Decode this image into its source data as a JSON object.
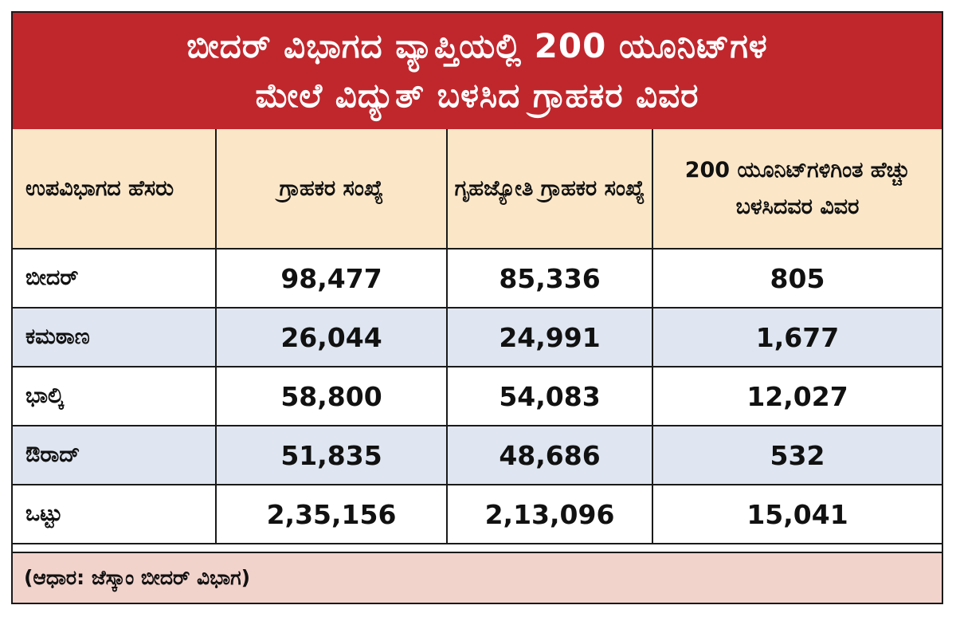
{
  "title": {
    "line1": "ಬೀದರ್ ವಿಭಾಗದ ವ್ಯಾಪ್ತಿಯಲ್ಲಿ 200 ಯೂನಿಟ್‌ಗಳ",
    "line2": "ಮೇಲೆ ವಿದ್ಯುತ್ ಬಳಸಿದ ಗ್ರಾಹಕರ ವಿವರ"
  },
  "headers": {
    "col1": "ಉಪವಿಭಾಗದ ಹೆಸರು",
    "col2": "ಗ್ರಾಹಕರ ಸಂಖ್ಯೆ",
    "col3": "ಗೃಹಜ್ಯೋತಿ ಗ್ರಾಹಕರ ಸಂಖ್ಯೆ",
    "col4": "200 ಯೂನಿಟ್‌ಗಳಿಗಿಂತ ಹೆಚ್ಚು ಬಳಸಿದವರ ವಿವರ"
  },
  "rows": [
    {
      "name": "ಬೀದರ್",
      "consumers": "98,477",
      "gruhajyothi": "85,336",
      "over200": "805"
    },
    {
      "name": "ಕಮಠಾಣ",
      "consumers": "26,044",
      "gruhajyothi": "24,991",
      "over200": "1,677"
    },
    {
      "name": "ಭಾಲ್ಕಿ",
      "consumers": "58,800",
      "gruhajyothi": "54,083",
      "over200": "12,027"
    },
    {
      "name": "ಔರಾದ್",
      "consumers": "51,835",
      "gruhajyothi": "48,686",
      "over200": "532"
    },
    {
      "name": "ಒಟ್ಟು",
      "consumers": "2,35,156",
      "gruhajyothi": "2,13,096",
      "over200": "15,041"
    }
  ],
  "source": "(ಆಧಾರ: ಜೆಸ್ಕಾಂ ಬೀದರ್ ವಿಭಾಗ)",
  "colors": {
    "title_band": "#c0272d",
    "header_band": "#fbe7c8",
    "row_alt": "#dfe6f1",
    "source_band": "#f2d3cc"
  },
  "chart_data": {
    "type": "table",
    "title": "ಬೀದರ್ ವಿಭಾಗದ ವ್ಯಾಪ್ತಿಯಲ್ಲಿ 200 ಯೂನಿಟ್‌ಗಳ ಮೇಲೆ ವಿದ್ಯುತ್ ಬಳಸಿದ ಗ್ರಾಹಕರ ವಿವರ",
    "columns": [
      "ಉಪವಿಭಾಗದ ಹೆಸರು",
      "ಗ್ರಾಹಕರ ಸಂಖ್ಯೆ",
      "ಗೃಹಜ್ಯೋತಿ ಗ್ರಾಹಕರ ಸಂಖ್ಯೆ",
      "200 ಯೂನಿಟ್‌ಗಳಿಗಿಂತ ಹೆಚ್ಚು ಬಳಸಿದವರ ವಿವರ"
    ],
    "rows": [
      [
        "ಬೀದರ್",
        98477,
        85336,
        805
      ],
      [
        "ಕಮಠಾಣ",
        26044,
        24991,
        1677
      ],
      [
        "ಭಾಲ್ಕಿ",
        58800,
        54083,
        12027
      ],
      [
        "ಔರಾದ್",
        51835,
        48686,
        532
      ],
      [
        "ಒಟ್ಟು",
        235156,
        213096,
        15041
      ]
    ]
  }
}
